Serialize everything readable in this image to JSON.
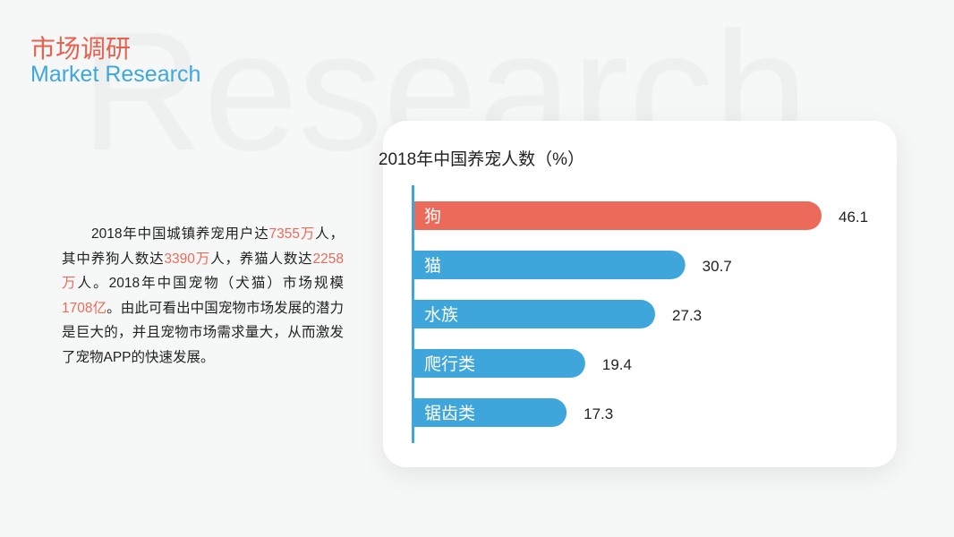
{
  "header": {
    "watermark": "Research",
    "title_cn": "市场调研",
    "title_en": "Market Research"
  },
  "paragraph": [
    {
      "t": "2018年中国城镇养宠用户达"
    },
    {
      "t": "7355万",
      "hl": true
    },
    {
      "t": "人，其中养狗人数达"
    },
    {
      "t": "3390万",
      "hl": true
    },
    {
      "t": "人，养猫人数达"
    },
    {
      "t": "2258万",
      "hl": true
    },
    {
      "t": "人。2018年中国宠物（犬猫）市场规模"
    },
    {
      "t": "1708亿",
      "hl": true
    },
    {
      "t": "。由此可看出中国宠物市场发展的潜力是巨大的，并且宠物市场需求量大，从而激发了宠物APP的快速发展。"
    }
  ],
  "chart_data": {
    "type": "bar",
    "orientation": "horizontal",
    "title": "2018年中国养宠人数（%）",
    "categories": [
      "狗",
      "猫",
      "水族",
      "爬行类",
      "锯齿类"
    ],
    "values": [
      46.1,
      30.7,
      27.3,
      19.4,
      17.3
    ],
    "colors": [
      "#ec6a5a",
      "#3fa6dc",
      "#3fa6dc",
      "#3fa6dc",
      "#3fa6dc"
    ],
    "axis_color": "#3fa6dc",
    "xlim": [
      0,
      46.1
    ]
  }
}
